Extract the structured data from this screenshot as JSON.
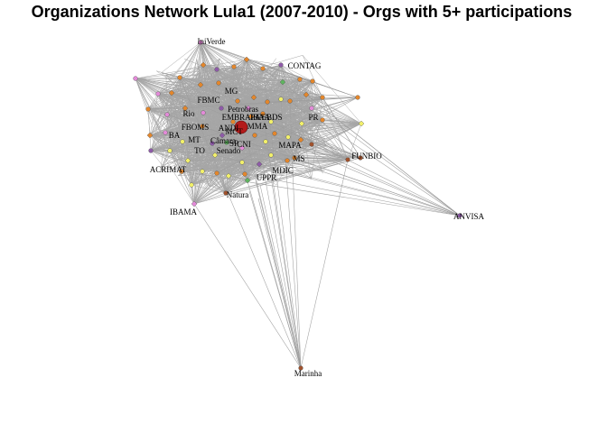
{
  "title": "Organizations Network Lula1 (2007-2010) - Orgs with 5+ participations",
  "colors": {
    "edge": "#9e9e9e",
    "orange": "#e3862b",
    "pink": "#e38ad8",
    "purple": "#8e5aa8",
    "green": "#5fb45f",
    "yellow": "#f2f06a",
    "darkred": "#b31b1b",
    "brown": "#a0522d"
  },
  "labels": [
    {
      "id": "iniverde",
      "text": "IniVerde"
    },
    {
      "id": "contag",
      "text": "CONTAG"
    },
    {
      "id": "mg",
      "text": "MG"
    },
    {
      "id": "fbmc",
      "text": "FBMC"
    },
    {
      "id": "petrobras",
      "text": "Petrobras"
    },
    {
      "id": "rio",
      "text": "Rio"
    },
    {
      "id": "embrapa",
      "text": "EMBRAPA"
    },
    {
      "id": "ibaa",
      "text": "IBAA"
    },
    {
      "id": "cebds",
      "text": "CEBDS"
    },
    {
      "id": "pr",
      "text": "PR"
    },
    {
      "id": "fboms",
      "text": "FBOMS"
    },
    {
      "id": "mma",
      "text": "MMA"
    },
    {
      "id": "mct",
      "text": "MCT"
    },
    {
      "id": "andi",
      "text": "ANDI"
    },
    {
      "id": "ba",
      "text": "BA"
    },
    {
      "id": "mt",
      "text": "MT"
    },
    {
      "id": "camara",
      "text": "Câmara"
    },
    {
      "id": "sp",
      "text": "SP"
    },
    {
      "id": "cni",
      "text": "CNI"
    },
    {
      "id": "mapa",
      "text": "MAPA"
    },
    {
      "id": "to",
      "text": "TO"
    },
    {
      "id": "senado",
      "text": "Senado"
    },
    {
      "id": "funbio",
      "text": "FUNBIO"
    },
    {
      "id": "ms",
      "text": "MS"
    },
    {
      "id": "acrimat",
      "text": "ACRIMAT"
    },
    {
      "id": "mdic",
      "text": "MDIC"
    },
    {
      "id": "uppr",
      "text": "UPPR"
    },
    {
      "id": "natura",
      "text": "Natura"
    },
    {
      "id": "ibama",
      "text": "IBAMA"
    },
    {
      "id": "anvisa",
      "text": "ANVISA"
    },
    {
      "id": "marinha",
      "text": "Marinha"
    }
  ]
}
